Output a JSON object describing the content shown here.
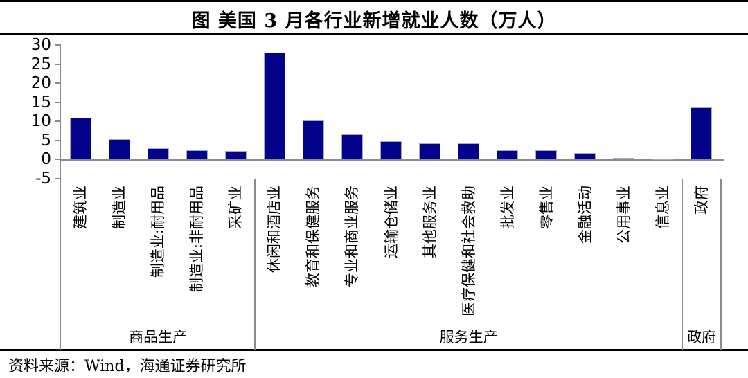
{
  "title": "图 美国 3 月各行业新增就业人数（万人）",
  "source": "资料来源：Wind，海通证券研究所",
  "chart_data": {
    "type": "bar",
    "title": "图 美国 3 月各行业新增就业人数（万人）",
    "unit": "万人",
    "categories": [
      "建筑业",
      "制造业",
      "制造业:耐用品",
      "制造业:非耐用品",
      "采矿业",
      "休闲和酒店业",
      "教育和保健服务",
      "专业和商业服务",
      "运输仓储业",
      "其他服务业",
      "医疗保健和社会救助",
      "批发业",
      "零售业",
      "金融活动",
      "公用事业",
      "信息业",
      "政府"
    ],
    "values": [
      11.0,
      5.3,
      3.0,
      2.3,
      2.1,
      28.0,
      10.1,
      6.6,
      4.8,
      4.2,
      4.1,
      2.4,
      2.3,
      1.6,
      0.4,
      0.1,
      13.6
    ],
    "groups": [
      {
        "label": "商品生产",
        "start": 0,
        "end": 5
      },
      {
        "label": "服务生产",
        "start": 5,
        "end": 16
      },
      {
        "label": "政府",
        "start": 16,
        "end": 17
      }
    ],
    "y_ticks": [
      30,
      25,
      20,
      15,
      10,
      5,
      0,
      -5
    ],
    "ylim": [
      -5,
      30
    ],
    "xlabel": "",
    "ylabel": "",
    "grid": false,
    "legend_position": "none",
    "bar_color": "#02028B",
    "bar_border_color": "#A8A8C8",
    "axis_color": "#8C8C8C"
  }
}
